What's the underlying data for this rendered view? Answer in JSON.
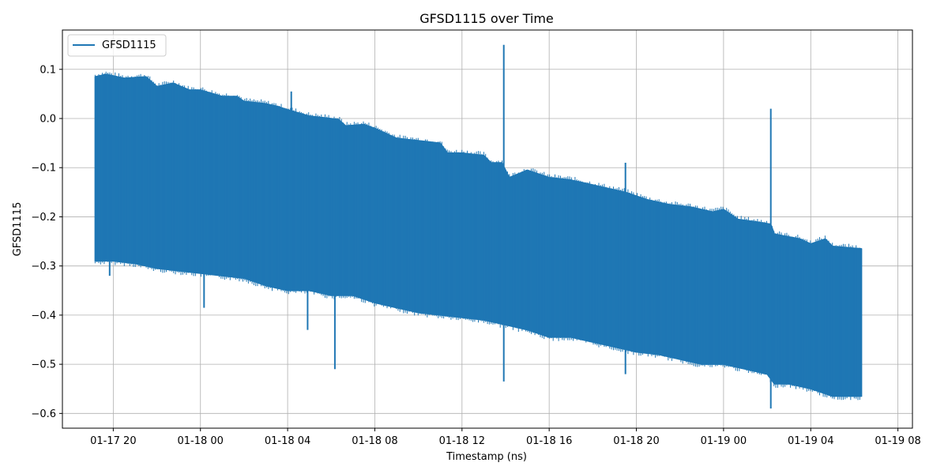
{
  "chart_data": {
    "type": "line",
    "title": "GFSD1115 over Time",
    "xlabel": "Timestamp (ns)",
    "ylabel": "GFSD1115",
    "legend": {
      "placement": "top-left",
      "entries": [
        "GFSD1115"
      ]
    },
    "grid": true,
    "xlim": [
      "2024-01-17 17:40",
      "2024-01-19 08:40"
    ],
    "ylim": [
      -0.63,
      0.18
    ],
    "x_ticks": [
      {
        "value": "2024-01-17 20:00",
        "label": "01-17 20"
      },
      {
        "value": "2024-01-18 00:00",
        "label": "01-18 00"
      },
      {
        "value": "2024-01-18 04:00",
        "label": "01-18 04"
      },
      {
        "value": "2024-01-18 08:00",
        "label": "01-18 08"
      },
      {
        "value": "2024-01-18 12:00",
        "label": "01-18 12"
      },
      {
        "value": "2024-01-18 16:00",
        "label": "01-18 16"
      },
      {
        "value": "2024-01-18 20:00",
        "label": "01-18 20"
      },
      {
        "value": "2024-01-19 00:00",
        "label": "01-19 00"
      },
      {
        "value": "2024-01-19 04:00",
        "label": "01-19 04"
      },
      {
        "value": "2024-01-19 08:00",
        "label": "01-19 08"
      }
    ],
    "y_ticks": [
      {
        "value": 0.1,
        "label": "0.1"
      },
      {
        "value": 0.0,
        "label": "0.0"
      },
      {
        "value": -0.1,
        "label": "−0.1"
      },
      {
        "value": -0.2,
        "label": "−0.2"
      },
      {
        "value": -0.3,
        "label": "−0.3"
      },
      {
        "value": -0.4,
        "label": "−0.4"
      },
      {
        "value": -0.5,
        "label": "−0.5"
      },
      {
        "value": -0.6,
        "label": "−0.6"
      }
    ],
    "series": [
      {
        "name": "GFSD1115",
        "color": "#1f77b4",
        "upper_envelope": [
          [
            "2024-01-17 19:10",
            0.085
          ],
          [
            "2024-01-17 19:40",
            0.09
          ],
          [
            "2024-01-17 20:30",
            0.082
          ],
          [
            "2024-01-17 21:30",
            0.085
          ],
          [
            "2024-01-17 22:00",
            0.065
          ],
          [
            "2024-01-17 22:45",
            0.072
          ],
          [
            "2024-01-17 23:30",
            0.058
          ],
          [
            "2024-01-18 00:00",
            0.058
          ],
          [
            "2024-01-18 01:00",
            0.045
          ],
          [
            "2024-01-18 01:40",
            0.045
          ],
          [
            "2024-01-18 02:00",
            0.035
          ],
          [
            "2024-01-18 03:00",
            0.03
          ],
          [
            "2024-01-18 03:30",
            0.025
          ],
          [
            "2024-01-18 04:00",
            0.018
          ],
          [
            "2024-01-18 05:00",
            0.005
          ],
          [
            "2024-01-18 06:00",
            0.0
          ],
          [
            "2024-01-18 06:20",
            -0.002
          ],
          [
            "2024-01-18 06:40",
            -0.015
          ],
          [
            "2024-01-18 07:30",
            -0.012
          ],
          [
            "2024-01-18 08:00",
            -0.02
          ],
          [
            "2024-01-18 09:00",
            -0.04
          ],
          [
            "2024-01-18 10:00",
            -0.045
          ],
          [
            "2024-01-18 11:00",
            -0.05
          ],
          [
            "2024-01-18 11:20",
            -0.07
          ],
          [
            "2024-01-18 12:00",
            -0.07
          ],
          [
            "2024-01-18 13:00",
            -0.075
          ],
          [
            "2024-01-18 13:20",
            -0.09
          ],
          [
            "2024-01-18 13:50",
            -0.09
          ],
          [
            "2024-01-18 14:10",
            -0.12
          ],
          [
            "2024-01-18 15:00",
            -0.105
          ],
          [
            "2024-01-18 16:00",
            -0.12
          ],
          [
            "2024-01-18 17:00",
            -0.125
          ],
          [
            "2024-01-18 18:00",
            -0.135
          ],
          [
            "2024-01-18 19:30",
            -0.15
          ],
          [
            "2024-01-18 20:30",
            -0.165
          ],
          [
            "2024-01-18 21:30",
            -0.175
          ],
          [
            "2024-01-18 22:30",
            -0.18
          ],
          [
            "2024-01-18 23:30",
            -0.19
          ],
          [
            "2024-01-19 00:00",
            -0.185
          ],
          [
            "2024-01-19 00:40",
            -0.205
          ],
          [
            "2024-01-19 01:30",
            -0.21
          ],
          [
            "2024-01-19 02:10",
            -0.215
          ],
          [
            "2024-01-19 02:20",
            -0.235
          ],
          [
            "2024-01-19 03:30",
            -0.245
          ],
          [
            "2024-01-19 04:00",
            -0.255
          ],
          [
            "2024-01-19 04:40",
            -0.245
          ],
          [
            "2024-01-19 05:00",
            -0.26
          ],
          [
            "2024-01-19 06:20",
            -0.265
          ]
        ],
        "lower_envelope": [
          [
            "2024-01-17 19:10",
            -0.29
          ],
          [
            "2024-01-17 20:00",
            -0.29
          ],
          [
            "2024-01-17 21:00",
            -0.295
          ],
          [
            "2024-01-17 22:00",
            -0.305
          ],
          [
            "2024-01-17 23:00",
            -0.31
          ],
          [
            "2024-01-18 00:00",
            -0.315
          ],
          [
            "2024-01-18 01:00",
            -0.32
          ],
          [
            "2024-01-18 02:00",
            -0.325
          ],
          [
            "2024-01-18 03:00",
            -0.34
          ],
          [
            "2024-01-18 04:00",
            -0.35
          ],
          [
            "2024-01-18 05:00",
            -0.35
          ],
          [
            "2024-01-18 06:00",
            -0.36
          ],
          [
            "2024-01-18 07:00",
            -0.36
          ],
          [
            "2024-01-18 08:00",
            -0.375
          ],
          [
            "2024-01-18 09:00",
            -0.385
          ],
          [
            "2024-01-18 10:00",
            -0.395
          ],
          [
            "2024-01-18 11:00",
            -0.4
          ],
          [
            "2024-01-18 12:00",
            -0.405
          ],
          [
            "2024-01-18 13:00",
            -0.41
          ],
          [
            "2024-01-18 14:00",
            -0.42
          ],
          [
            "2024-01-18 15:00",
            -0.43
          ],
          [
            "2024-01-18 16:00",
            -0.445
          ],
          [
            "2024-01-18 17:00",
            -0.445
          ],
          [
            "2024-01-18 18:00",
            -0.455
          ],
          [
            "2024-01-18 19:00",
            -0.465
          ],
          [
            "2024-01-18 20:00",
            -0.475
          ],
          [
            "2024-01-18 21:00",
            -0.48
          ],
          [
            "2024-01-18 22:00",
            -0.49
          ],
          [
            "2024-01-18 23:00",
            -0.5
          ],
          [
            "2024-01-19 00:00",
            -0.5
          ],
          [
            "2024-01-19 01:00",
            -0.51
          ],
          [
            "2024-01-19 02:00",
            -0.52
          ],
          [
            "2024-01-19 02:20",
            -0.54
          ],
          [
            "2024-01-19 03:00",
            -0.54
          ],
          [
            "2024-01-19 04:00",
            -0.55
          ],
          [
            "2024-01-19 05:00",
            -0.565
          ],
          [
            "2024-01-19 06:20",
            -0.565
          ]
        ],
        "spikes": [
          [
            "2024-01-17 19:50",
            -0.32
          ],
          [
            "2024-01-18 00:10",
            -0.385
          ],
          [
            "2024-01-18 04:10",
            0.055
          ],
          [
            "2024-01-18 04:55",
            -0.43
          ],
          [
            "2024-01-18 06:10",
            -0.51
          ],
          [
            "2024-01-18 13:55",
            0.15
          ],
          [
            "2024-01-18 13:55",
            -0.535
          ],
          [
            "2024-01-18 19:30",
            -0.09
          ],
          [
            "2024-01-18 19:30",
            -0.52
          ],
          [
            "2024-01-19 02:10",
            0.02
          ],
          [
            "2024-01-19 02:10",
            -0.59
          ]
        ]
      }
    ]
  }
}
